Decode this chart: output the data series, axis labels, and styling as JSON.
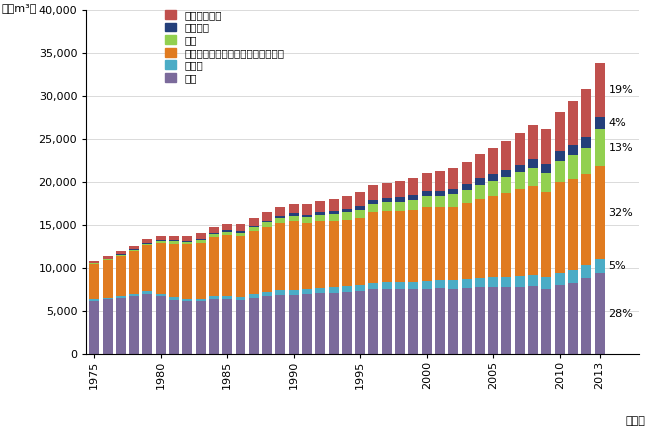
{
  "years": [
    1975,
    1976,
    1977,
    1978,
    1979,
    1980,
    1981,
    1982,
    1983,
    1984,
    1985,
    1986,
    1987,
    1988,
    1989,
    1990,
    1991,
    1992,
    1993,
    1994,
    1995,
    1996,
    1997,
    1998,
    1999,
    2000,
    2001,
    2002,
    2003,
    2004,
    2005,
    2006,
    2007,
    2008,
    2009,
    2010,
    2011,
    2012,
    2013
  ],
  "regions": [
    "北米",
    "中南米",
    "欧州・ロシア・その他旧ソ連邦諸国",
    "中東",
    "アフリカ",
    "アジア大洋州"
  ],
  "colors": [
    "#7b6a9b",
    "#4bacc6",
    "#e07b20",
    "#92d050",
    "#243f7a",
    "#c0504d"
  ],
  "percentages_order": [
    "北米",
    "中南米",
    "欧州・ロシア・その他旧ソ連邦諸国",
    "中東",
    "アフリカ",
    "アジア大洋州"
  ],
  "percentages": [
    "28%",
    "5%",
    "32%",
    "13%",
    "4%",
    "19%"
  ],
  "data": {
    "北米": [
      6200,
      6350,
      6550,
      6700,
      7000,
      6700,
      6300,
      6100,
      6100,
      6350,
      6350,
      6250,
      6500,
      6700,
      6900,
      6900,
      7000,
      7100,
      7100,
      7200,
      7350,
      7500,
      7550,
      7500,
      7550,
      7600,
      7650,
      7600,
      7700,
      7750,
      7800,
      7750,
      7800,
      7900,
      7600,
      8000,
      8300,
      8800,
      9380
    ],
    "中南米": [
      170,
      195,
      215,
      240,
      265,
      295,
      315,
      325,
      340,
      360,
      390,
      410,
      440,
      470,
      500,
      540,
      570,
      600,
      640,
      675,
      715,
      745,
      775,
      805,
      840,
      890,
      920,
      955,
      995,
      1045,
      1095,
      1150,
      1200,
      1255,
      1305,
      1400,
      1455,
      1555,
      1675
    ],
    "欧州・ロシア・その他旧ソ連邦諸国": [
      4100,
      4350,
      4650,
      5000,
      5350,
      5900,
      6200,
      6300,
      6500,
      6900,
      7050,
      7000,
      7300,
      7600,
      7850,
      8000,
      7650,
      7700,
      7650,
      7700,
      7750,
      8200,
      8250,
      8250,
      8300,
      8600,
      8450,
      8550,
      8800,
      9250,
      9500,
      9850,
      10150,
      10400,
      9900,
      10600,
      10550,
      10550,
      10720
    ],
    "中東": [
      90,
      115,
      135,
      160,
      190,
      230,
      260,
      290,
      315,
      355,
      395,
      425,
      465,
      510,
      560,
      610,
      670,
      745,
      810,
      875,
      935,
      995,
      1055,
      1125,
      1195,
      1270,
      1350,
      1430,
      1520,
      1620,
      1720,
      1820,
      1930,
      2070,
      2220,
      2430,
      2750,
      3050,
      4355
    ],
    "アフリカ": [
      45,
      55,
      65,
      75,
      85,
      95,
      105,
      115,
      125,
      142,
      162,
      182,
      202,
      222,
      242,
      270,
      298,
      326,
      354,
      382,
      410,
      438,
      466,
      494,
      532,
      570,
      608,
      646,
      684,
      722,
      770,
      826,
      892,
      968,
      1025,
      1090,
      1185,
      1235,
      1340
    ],
    "アジア大洋州": [
      240,
      285,
      330,
      375,
      425,
      475,
      520,
      565,
      615,
      680,
      755,
      815,
      890,
      975,
      1060,
      1135,
      1230,
      1325,
      1420,
      1515,
      1615,
      1710,
      1810,
      1910,
      2010,
      2110,
      2245,
      2390,
      2590,
      2790,
      3080,
      3380,
      3680,
      3980,
      4085,
      4580,
      5100,
      5620,
      6365
    ]
  },
  "ylabel": "（億m³）",
  "xlabel": "（年）",
  "ylim": [
    0,
    40000
  ],
  "yticks": [
    0,
    5000,
    10000,
    15000,
    20000,
    25000,
    30000,
    35000,
    40000
  ],
  "labeled_years": [
    1975,
    1980,
    1985,
    1990,
    1995,
    2000,
    2005,
    2010,
    2013
  ]
}
